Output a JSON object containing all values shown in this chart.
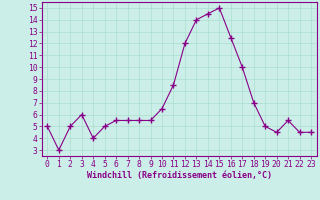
{
  "x": [
    0,
    1,
    2,
    3,
    4,
    5,
    6,
    7,
    8,
    9,
    10,
    11,
    12,
    13,
    14,
    15,
    16,
    17,
    18,
    19,
    20,
    21,
    22,
    23
  ],
  "y": [
    5,
    3,
    5,
    6,
    4,
    5,
    5.5,
    5.5,
    5.5,
    5.5,
    6.5,
    8.5,
    12,
    14,
    14.5,
    15,
    12.5,
    10,
    7,
    5,
    4.5,
    5.5,
    4.5,
    4.5
  ],
  "line_color": "#880088",
  "marker": "+",
  "marker_size": 4,
  "bg_color": "#cceee8",
  "grid_color": "#aaddcc",
  "xlabel": "Windchill (Refroidissement éolien,°C)",
  "ylabel_ticks": [
    3,
    4,
    5,
    6,
    7,
    8,
    9,
    10,
    11,
    12,
    13,
    14,
    15
  ],
  "xlim": [
    -0.5,
    23.5
  ],
  "ylim": [
    2.5,
    15.5
  ],
  "xlabel_fontsize": 6.0,
  "tick_fontsize": 5.8,
  "xlabel_color": "#880088",
  "tick_color": "#880088",
  "spine_color": "#880088"
}
